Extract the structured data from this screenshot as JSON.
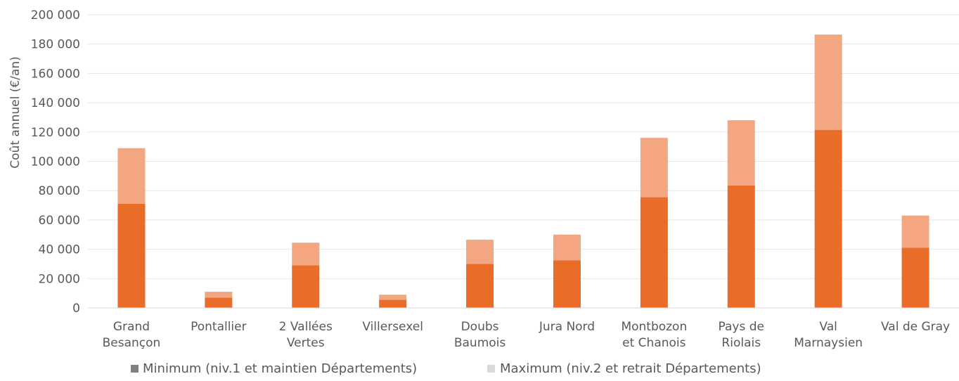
{
  "chart_data": {
    "type": "bar",
    "stacked": true,
    "title": "",
    "xlabel": "",
    "ylabel": "Coût annuel (€/an)",
    "ylim": [
      0,
      200000
    ],
    "y_ticks": [
      "0",
      "20 000",
      "40 000",
      "60 000",
      "80 000",
      "100 000",
      "120 000",
      "140 000",
      "160 000",
      "180 000",
      "200 000"
    ],
    "grid": true,
    "legend_position": "bottom",
    "categories": [
      [
        "Grand",
        "Besançon"
      ],
      [
        "Pontallier"
      ],
      [
        "2 Vallées",
        "Vertes"
      ],
      [
        "Villersexel"
      ],
      [
        "Doubs",
        "Baumois"
      ],
      [
        "Jura Nord"
      ],
      [
        "Montbozon",
        "et Chanois"
      ],
      [
        "Pays de",
        "Riolais"
      ],
      [
        "Val",
        "Marnaysien"
      ],
      [
        "Val de Gray"
      ]
    ],
    "series": [
      {
        "name": "Minimum (niv.1 et maintien Départements)",
        "color": "#E96D29",
        "legend_color": "#7f7f7f",
        "values": [
          71000,
          7000,
          29000,
          5500,
          30000,
          32500,
          75500,
          83500,
          121500,
          41000
        ]
      },
      {
        "name": "Maximum (niv.2 et retrait Départements)",
        "color": "#F3A67F",
        "legend_color": "#d9d9d9",
        "values": [
          38000,
          4000,
          15500,
          3500,
          16500,
          17500,
          40500,
          44500,
          65000,
          22000
        ]
      }
    ]
  }
}
